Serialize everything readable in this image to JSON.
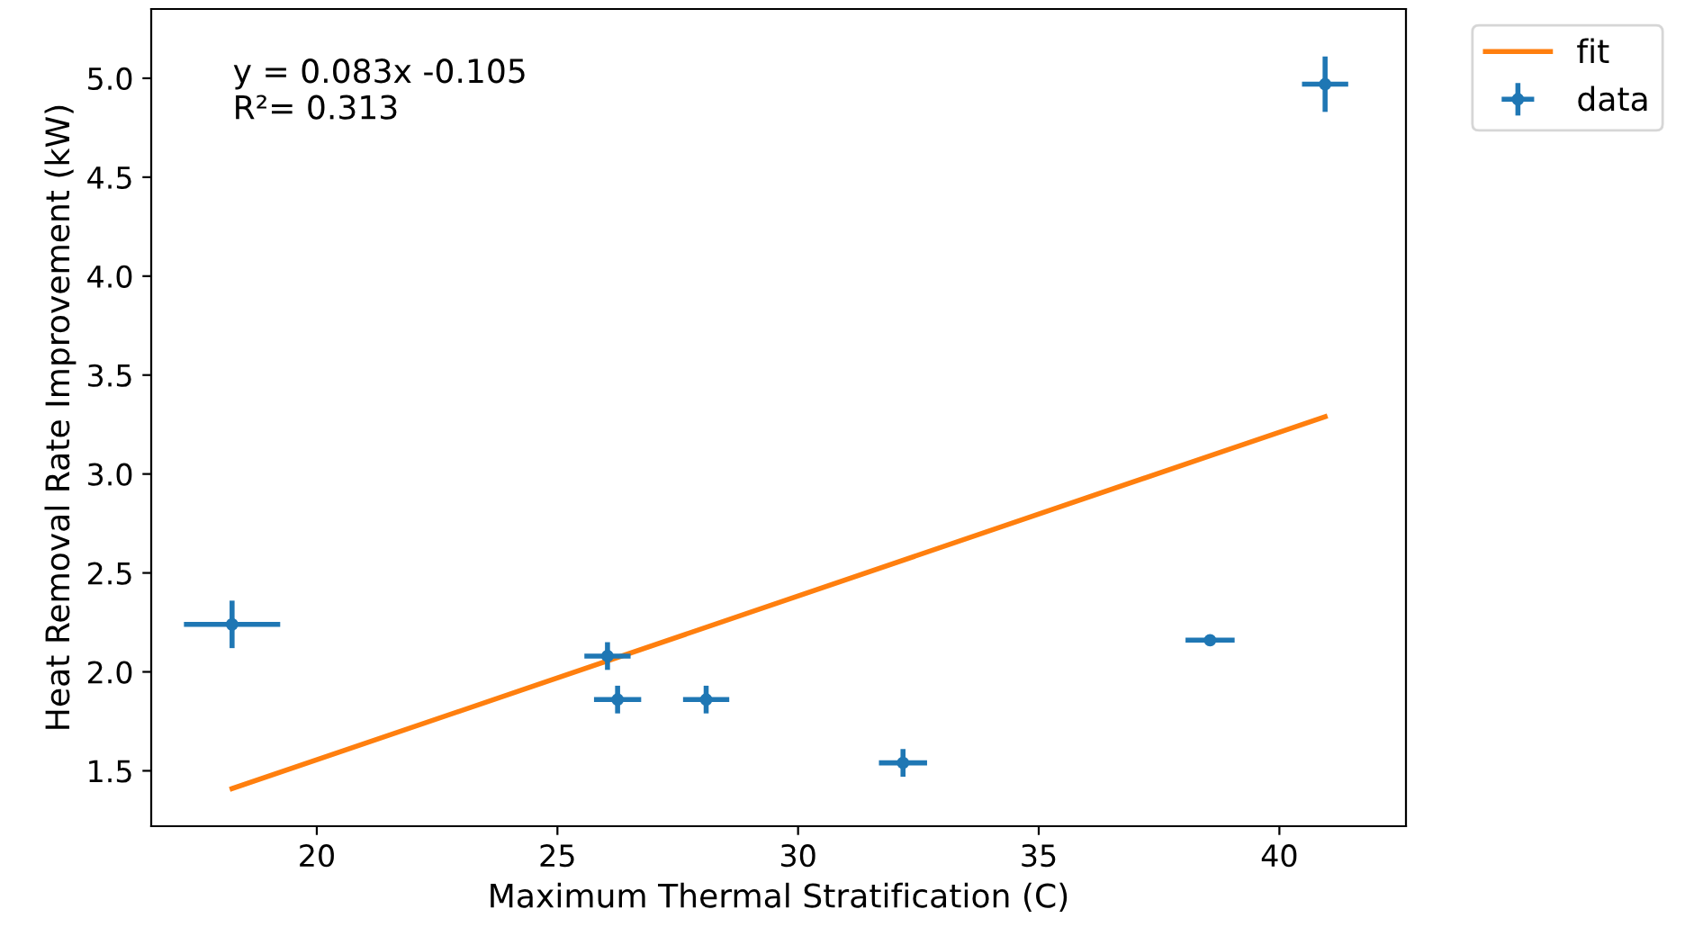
{
  "chart_data": {
    "type": "scatter",
    "xlabel": "Maximum Thermal Stratification (C)",
    "ylabel": "Heat Removal Rate Improvement (kW)",
    "annotations": [
      "y = 0.083x -0.105\nR²= 0.313"
    ],
    "xlim": [
      16.56,
      42.63
    ],
    "xticks": [
      20,
      25,
      30,
      35,
      40
    ],
    "ylim": [
      1.22,
      5.35
    ],
    "yticks": [
      1.5,
      {
        "value": 2,
        "label": "2.0"
      },
      2.5,
      {
        "value": 3,
        "label": "3.0"
      },
      3.5,
      {
        "value": 4,
        "label": "4.0"
      },
      4.5,
      {
        "value": 5,
        "label": "5.0"
      }
    ],
    "grid": false,
    "legend": "top right",
    "series": [
      {
        "name": "fit",
        "type": "line",
        "color": "#ff7f0e",
        "marker": "none",
        "line_style": "solid",
        "x": [
          18.24,
          40.95
        ],
        "values": [
          1.41,
          3.29
        ]
      },
      {
        "name": "data",
        "color": "#1f77b4",
        "marker": "circle",
        "x": [
          18.24,
          26.04,
          26.25,
          28.09,
          32.18,
          38.56,
          40.95
        ],
        "values": [
          2.24,
          2.08,
          1.86,
          1.86,
          1.54,
          2.16,
          4.97
        ],
        "errors": [
          0.12,
          0.07,
          0.07,
          0.07,
          0.07,
          0.02,
          0.14
        ],
        "xerrors": [
          1.0,
          0.48,
          0.49,
          0.48,
          0.5,
          0.51,
          0.48
        ]
      }
    ]
  }
}
